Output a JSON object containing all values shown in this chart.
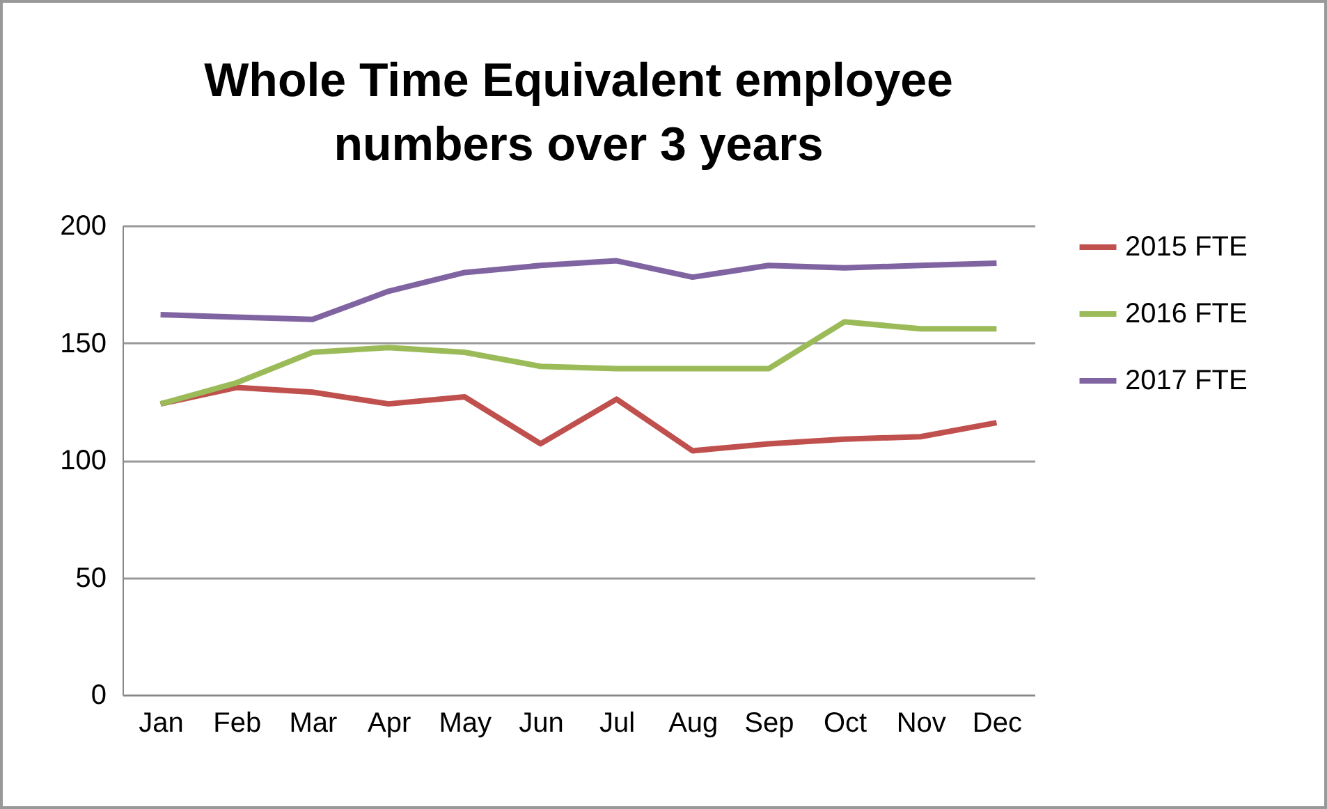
{
  "chart_data": {
    "type": "line",
    "title": "Whole Time Equivalent employee numbers over 3 years",
    "categories": [
      "Jan",
      "Feb",
      "Mar",
      "Apr",
      "May",
      "Jun",
      "Jul",
      "Aug",
      "Sep",
      "Oct",
      "Nov",
      "Dec"
    ],
    "series": [
      {
        "name": "2015 FTE",
        "color": "#c0504d",
        "values": [
          124,
          131,
          129,
          124,
          127,
          107,
          126,
          104,
          107,
          109,
          110,
          116
        ]
      },
      {
        "name": "2016 FTE",
        "color": "#9bbb59",
        "values": [
          124,
          133,
          146,
          148,
          146,
          140,
          139,
          139,
          139,
          159,
          156,
          156
        ]
      },
      {
        "name": "2017 FTE",
        "color": "#8064a2",
        "values": [
          162,
          161,
          160,
          172,
          180,
          183,
          185,
          178,
          183,
          182,
          183,
          184
        ]
      }
    ],
    "ylim": [
      0,
      200
    ],
    "yticks": [
      0,
      50,
      100,
      150,
      200
    ],
    "grid": "y",
    "legend": "right",
    "marker": "none",
    "line_style": "solid"
  }
}
